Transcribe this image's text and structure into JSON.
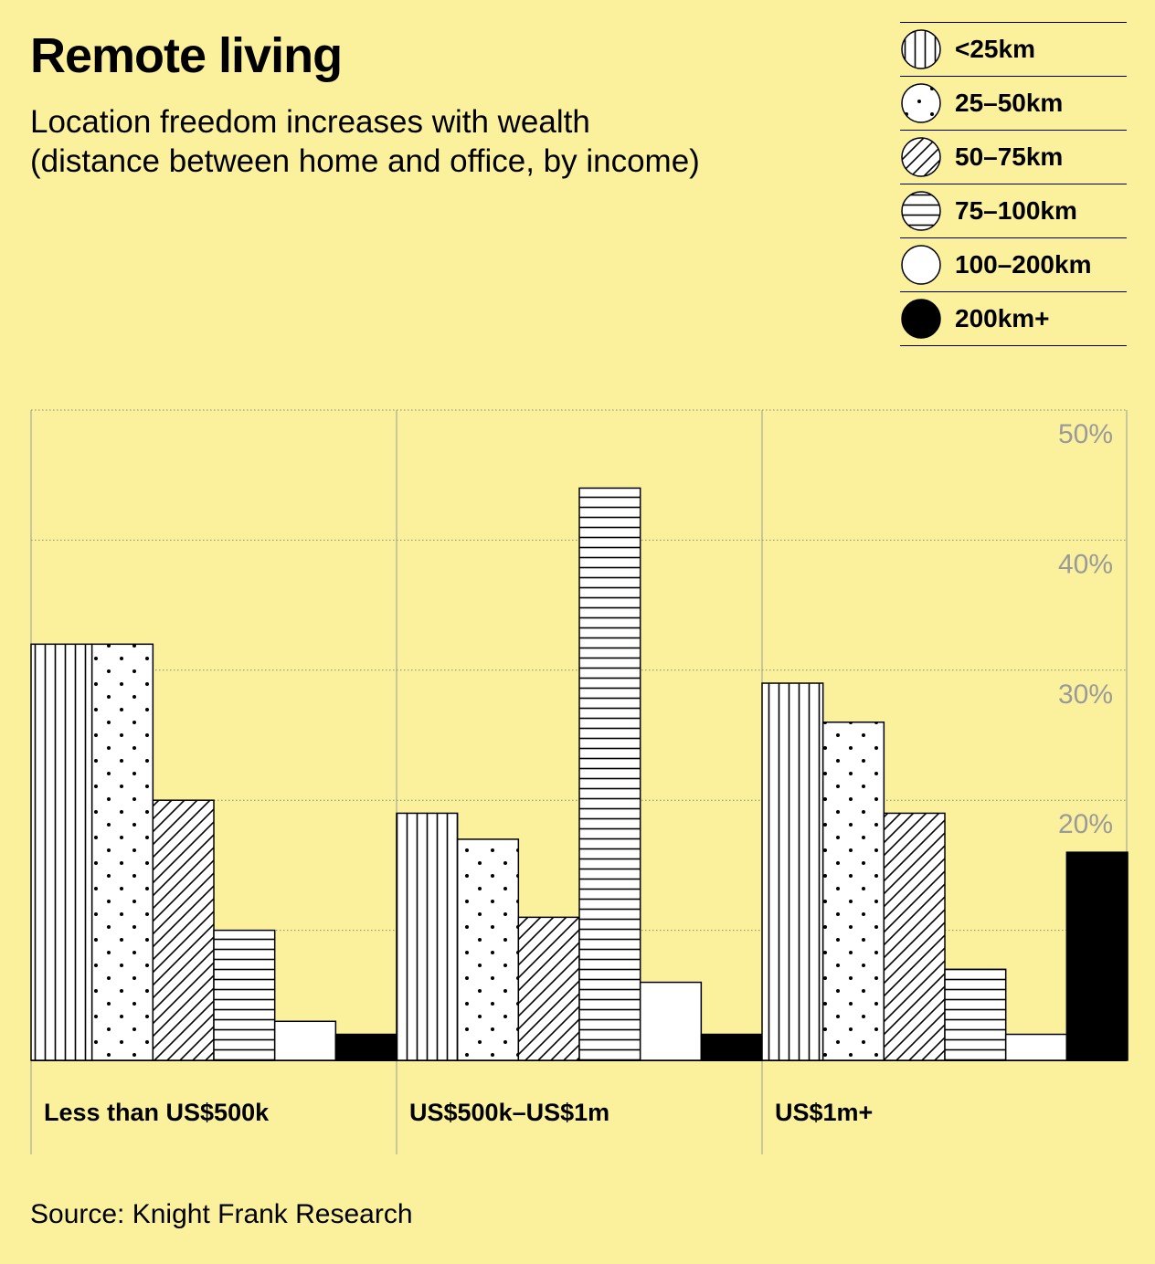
{
  "title": "Remote living",
  "subtitle_line1": "Location freedom increases with wealth",
  "subtitle_line2": "(distance between home and office, by income)",
  "source": "Source: Knight Frank Research",
  "colors": {
    "background": "#fbf19c",
    "bar_fill": "#ffffff",
    "solid": "#000000",
    "tick_text": "#9a9a9a"
  },
  "chart_data": {
    "type": "bar",
    "categories": [
      "Less than US$500k",
      "US$500k–US$1m",
      "US$1m+"
    ],
    "series": [
      {
        "name": "<25km",
        "pattern": "vertical-lines",
        "values": [
          32,
          19,
          29
        ]
      },
      {
        "name": "25–50km",
        "pattern": "dots",
        "values": [
          32,
          17,
          26
        ]
      },
      {
        "name": "50–75km",
        "pattern": "diagonal-lines",
        "values": [
          20,
          11,
          19
        ]
      },
      {
        "name": "75–100km",
        "pattern": "horizontal-lines",
        "values": [
          10,
          44,
          7
        ]
      },
      {
        "name": "100–200km",
        "pattern": "plain-white",
        "values": [
          3,
          6,
          2
        ]
      },
      {
        "name": "200km+",
        "pattern": "solid-black",
        "values": [
          2,
          2,
          16
        ]
      }
    ],
    "yticks": [
      "20%",
      "30%",
      "40%",
      "50%"
    ],
    "ytick_values": [
      20,
      30,
      40,
      50
    ],
    "ylim": [
      0,
      50
    ],
    "grid": true,
    "legend_position": "top-right"
  }
}
